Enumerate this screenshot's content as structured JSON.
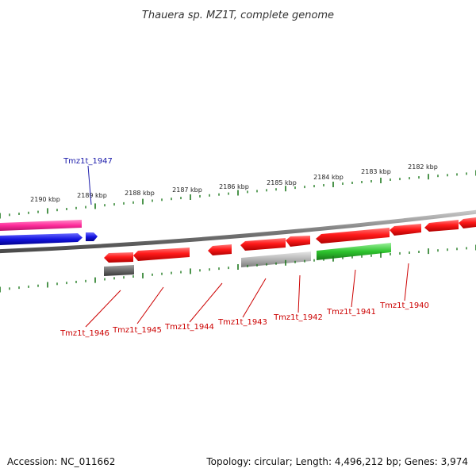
{
  "title": "Thauera sp. MZ1T, complete genome",
  "footer": {
    "accession": "Accession: NC_011662",
    "summary": "Topology: circular; Length: 4,496,212 bp; Genes: 3,974"
  },
  "colors": {
    "backbone": "#8a8a8a",
    "tick": "#1f7a1f",
    "forward_gene": "#ff1a1a",
    "reverse_gene": "#ff1a1a",
    "highlight_label": "#1a1aaa",
    "label_red": "#cc0000",
    "magenta_track": "#ff2d9b",
    "blue_track": "#1414e0",
    "green_gene": "#2ec42e",
    "gray_gene": "#b4b4b4",
    "dark_gray_gene": "#6a6a6a"
  },
  "ticks": [
    "2190 kbp",
    "2189 kbp",
    "2188 kbp",
    "2187 kbp",
    "2186 kbp",
    "2185 kbp",
    "2184 kbp",
    "2183 kbp",
    "2182 kbp"
  ],
  "labels": [
    {
      "text": "Tmz1t_1947",
      "color": "blue"
    },
    {
      "text": "Tmz1t_1946",
      "color": "red"
    },
    {
      "text": "Tmz1t_1945",
      "color": "red"
    },
    {
      "text": "Tmz1t_1944",
      "color": "red"
    },
    {
      "text": "Tmz1t_1943",
      "color": "red"
    },
    {
      "text": "Tmz1t_1942",
      "color": "red"
    },
    {
      "text": "Tmz1t_1941",
      "color": "red"
    },
    {
      "text": "Tmz1t_1940",
      "color": "red"
    }
  ]
}
